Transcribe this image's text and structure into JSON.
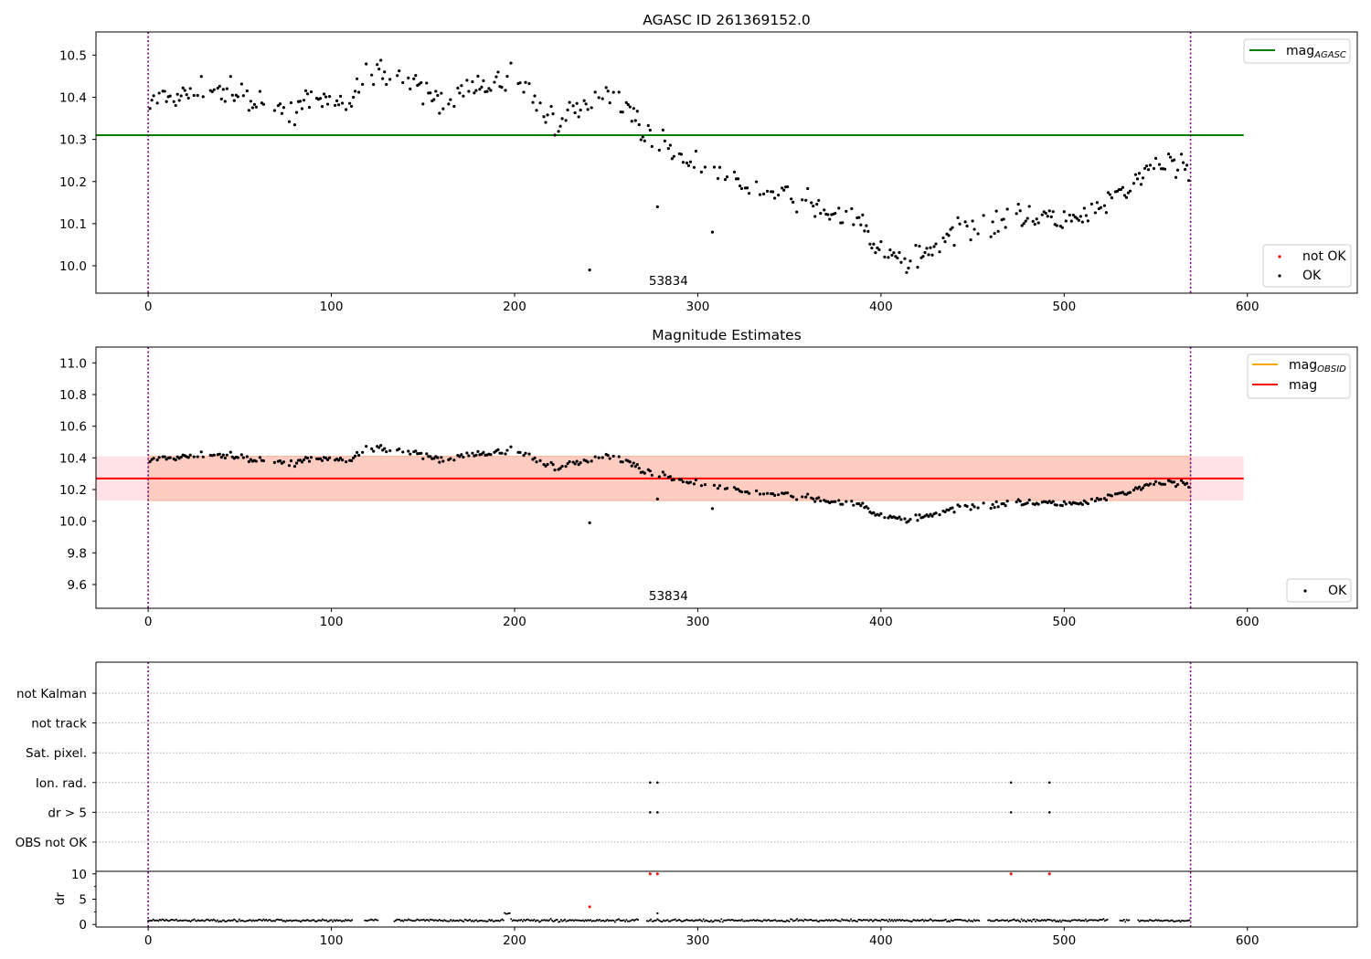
{
  "chart_data": [
    {
      "type": "scatter",
      "title": "AGASC ID 261369152.0",
      "xlim": [
        -28.5,
        660
      ],
      "ylim": [
        9.935,
        10.555
      ],
      "x_ticks": [
        0,
        100,
        200,
        300,
        400,
        500,
        600
      ],
      "y_ticks": [
        10.0,
        10.1,
        10.2,
        10.3,
        10.4,
        10.5
      ],
      "y_tick_labels": [
        "10.0",
        "10.1",
        "10.2",
        "10.3",
        "10.4",
        "10.5"
      ],
      "obsid_boundaries": [
        0,
        569
      ],
      "obsid_label": "53834",
      "mag_agasc": 10.31,
      "mag_agasc_x_range": [
        -28.5,
        598
      ],
      "legend_upper": {
        "label": "mag",
        "subscript": "AGASC",
        "color": "#008000",
        "position": "top-right"
      },
      "legend_lower": [
        {
          "label": "not OK",
          "color": "#ff0000"
        },
        {
          "label": "OK",
          "color": "#000000"
        }
      ],
      "series": [
        {
          "name": "OK",
          "color": "#000000",
          "trend_x": [
            0,
            20,
            40,
            60,
            80,
            100,
            110,
            120,
            140,
            160,
            180,
            200,
            215,
            225,
            240,
            250,
            260,
            270,
            290,
            310,
            330,
            350,
            370,
            390,
            400,
            415,
            430,
            450,
            480,
            510,
            530,
            550,
            568
          ],
          "trend_y": [
            10.38,
            10.41,
            10.42,
            10.38,
            10.37,
            10.4,
            10.38,
            10.47,
            10.44,
            10.39,
            10.42,
            10.45,
            10.37,
            10.34,
            10.38,
            10.42,
            10.39,
            10.32,
            10.26,
            10.21,
            10.18,
            10.16,
            10.13,
            10.1,
            10.03,
            10.01,
            10.05,
            10.1,
            10.12,
            10.11,
            10.17,
            10.24,
            10.24
          ],
          "spread": 0.045,
          "outliers_x": [
            241,
            278,
            308
          ],
          "outliers_y": [
            9.99,
            10.14,
            10.08
          ]
        }
      ]
    },
    {
      "type": "scatter",
      "title": "Magnitude Estimates",
      "xlim": [
        -28.5,
        660
      ],
      "ylim": [
        9.45,
        11.1
      ],
      "x_ticks": [
        0,
        100,
        200,
        300,
        400,
        500,
        600
      ],
      "y_ticks": [
        9.6,
        9.8,
        10.0,
        10.2,
        10.4,
        10.6,
        10.8,
        11.0
      ],
      "y_tick_labels": [
        "9.6",
        "9.8",
        "10.0",
        "10.2",
        "10.4",
        "10.6",
        "10.8",
        "11.0"
      ],
      "obsid_boundaries": [
        0,
        569
      ],
      "obsid_label": "53834",
      "mag": 10.27,
      "mag_band": [
        10.13,
        10.41
      ],
      "mag_band_x_range": [
        -28.5,
        598
      ],
      "legend_upper": [
        {
          "label": "mag",
          "subscript": "OBSID",
          "color": "#ffa500"
        },
        {
          "label": "mag",
          "subscript": "",
          "color": "#ff0000"
        }
      ],
      "legend_lower": [
        {
          "label": "OK",
          "color": "#000000"
        }
      ],
      "series": [
        {
          "name": "OK",
          "color": "#000000",
          "same_as": "panel_1",
          "spread": 0.03
        }
      ]
    },
    {
      "type": "scatter",
      "title": "",
      "xlim": [
        -28.5,
        660
      ],
      "x_ticks": [
        0,
        100,
        200,
        300,
        400,
        500,
        600
      ],
      "obsid_boundaries": [
        0,
        569
      ],
      "flag_rows": [
        "not Kalman",
        "not track",
        "Sat. pixel.",
        "Ion. rad.",
        "dr > 5",
        "OBS not OK"
      ],
      "flag_points": {
        "Ion. rad.": [
          274,
          278,
          471,
          492
        ],
        "dr > 5": [
          274,
          278,
          471,
          492
        ]
      },
      "dr": {
        "ylabel": "dr",
        "ylim": [
          -0.5,
          10.5
        ],
        "y_ticks": [
          0,
          5,
          10
        ],
        "y_tick_labels": [
          "0",
          "5",
          "10"
        ],
        "typical": 0.8,
        "gap_ranges": [
          [
            112,
            118
          ],
          [
            126,
            134
          ],
          [
            268,
            272
          ],
          [
            454,
            458
          ],
          [
            524,
            530
          ],
          [
            536,
            540
          ]
        ],
        "high_segment": {
          "x": [
            194,
            198
          ],
          "y": 2.2
        },
        "red_points": {
          "x": [
            241,
            274,
            278,
            471,
            492
          ],
          "y": [
            3.5,
            10,
            10,
            10,
            10
          ]
        },
        "black_extra": {
          "x": [
            278
          ],
          "y": [
            2.2
          ]
        }
      }
    }
  ]
}
